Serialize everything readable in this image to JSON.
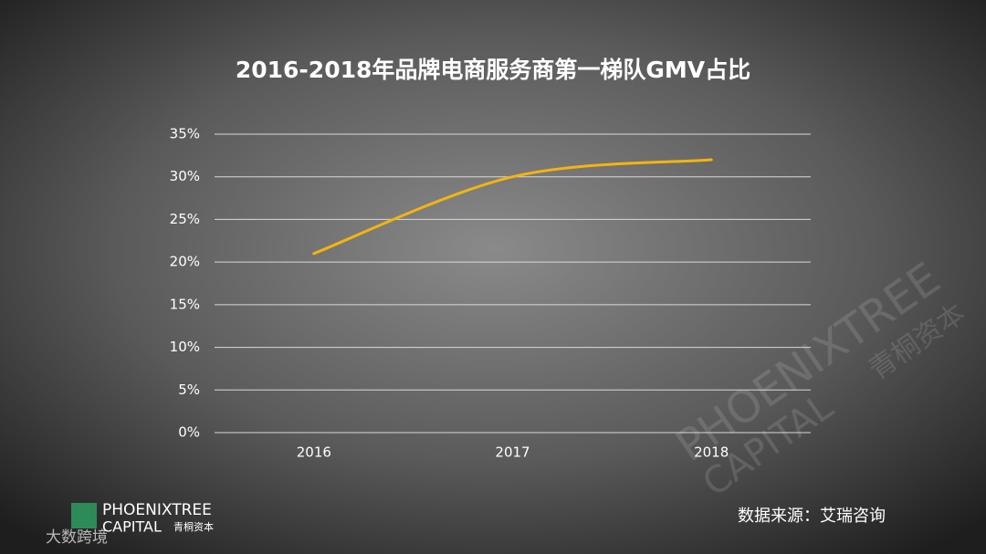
{
  "chart_data": {
    "type": "line",
    "title": "2016-2018年品牌电商服务商第一梯队GMV占比",
    "categories": [
      "2016",
      "2017",
      "2018"
    ],
    "values": [
      21,
      30,
      32
    ],
    "color": "#f2b50f",
    "smooth": true,
    "ylim": [
      0,
      35
    ],
    "yticks": [
      {
        "value": 0,
        "label": "0%"
      },
      {
        "value": 5,
        "label": "5%"
      },
      {
        "value": 10,
        "label": "10%"
      },
      {
        "value": 15,
        "label": "15%"
      },
      {
        "value": 20,
        "label": "20%"
      },
      {
        "value": 25,
        "label": "25%"
      },
      {
        "value": 30,
        "label": "30%"
      },
      {
        "value": 35,
        "label": "35%"
      }
    ],
    "grid": true
  },
  "source": "数据来源：艾瑞咨询",
  "logo": {
    "name": "PHOENIXTREE",
    "sub": "CAPITAL",
    "cn": "青桐资本"
  },
  "watermark": "大数跨境"
}
